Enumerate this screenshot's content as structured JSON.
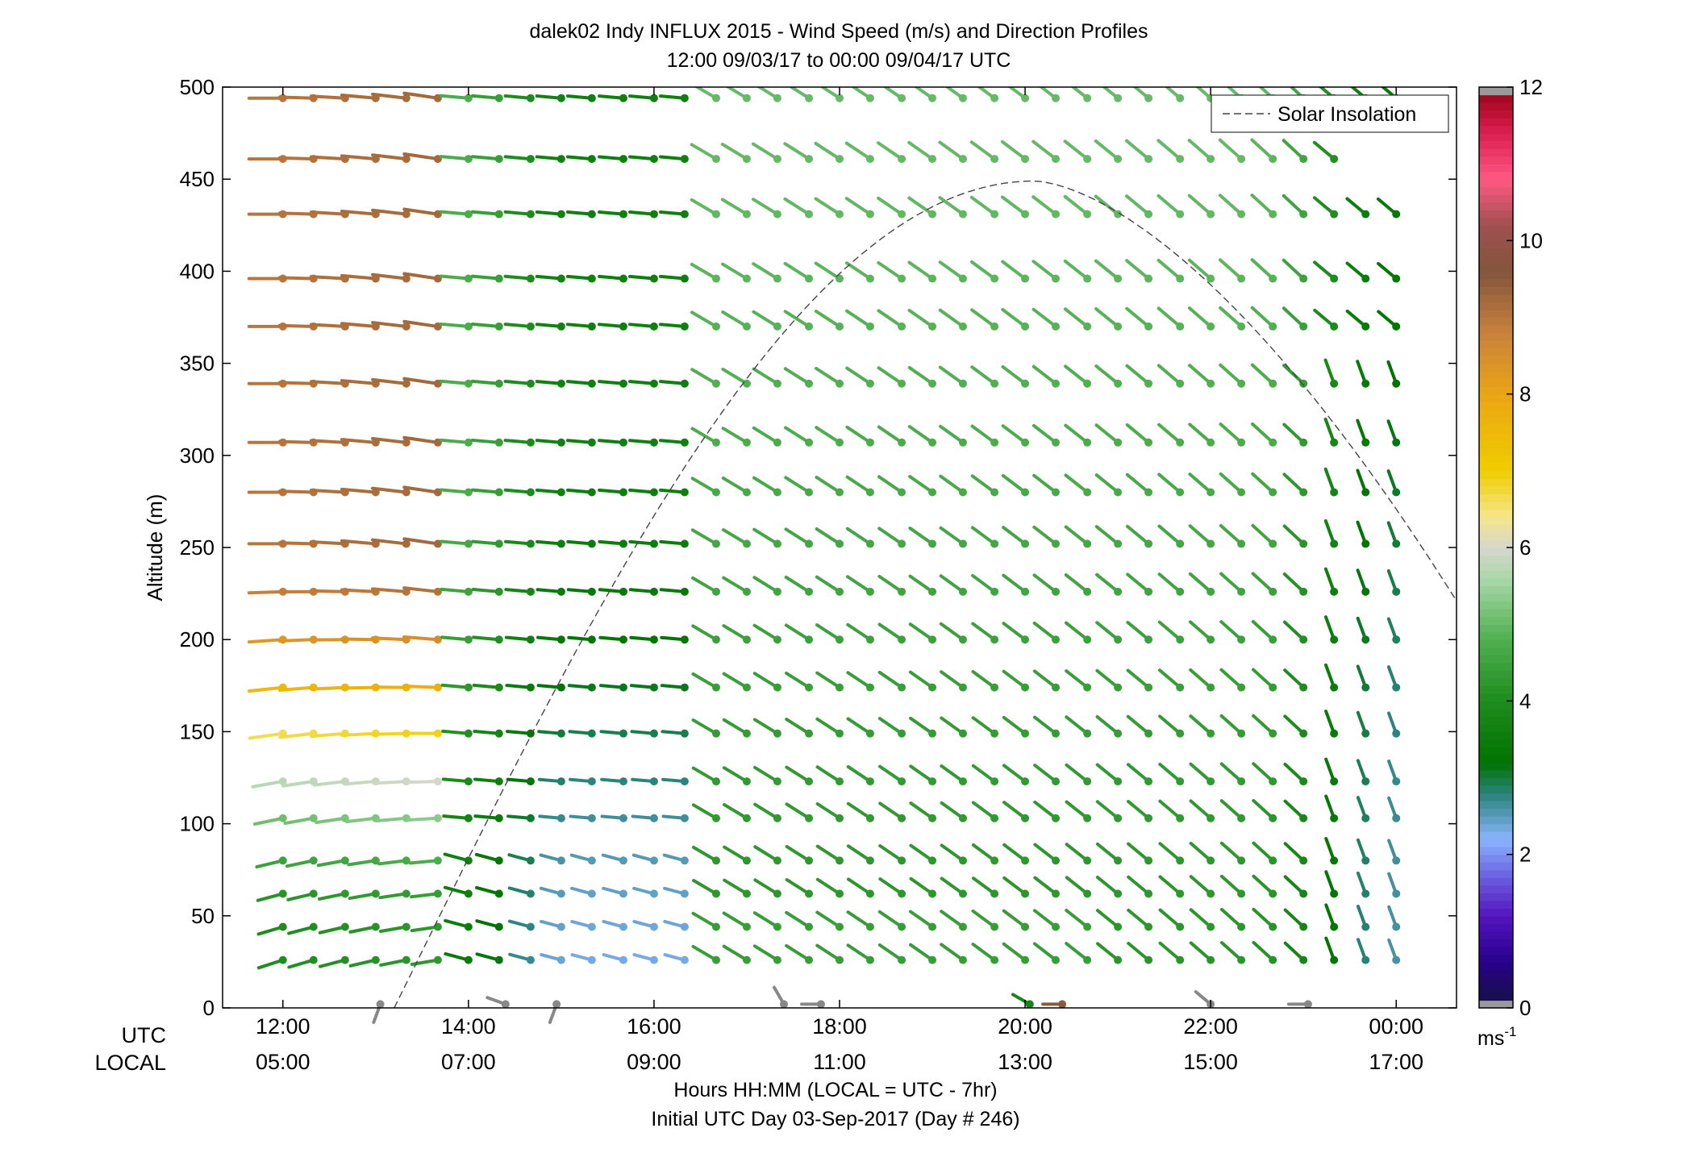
{
  "chart_data": {
    "type": "wind-barb profile",
    "title": "dalek02 Indy INFLUX 2015 - Wind Speed (m/s) and Direction Profiles",
    "subtitle": "12:00 09/03/17 to 00:00 09/04/17  UTC",
    "ylabel": "Altitude (m)",
    "ylim": [
      0,
      500
    ],
    "yticks": [
      "0",
      "50",
      "100",
      "150",
      "200",
      "250",
      "300",
      "350",
      "400",
      "450",
      "500"
    ],
    "x_axis": {
      "range_hours_utc": [
        11.35,
        24.65
      ],
      "tick_hours": [
        12,
        14,
        16,
        18,
        20,
        22,
        24
      ],
      "utc_row_label": "UTC",
      "local_row_label": "LOCAL",
      "utc_ticks": [
        "12:00",
        "14:00",
        "16:00",
        "18:00",
        "20:00",
        "22:00",
        "00:00"
      ],
      "local_ticks": [
        "05:00",
        "07:00",
        "09:00",
        "11:00",
        "13:00",
        "15:00",
        "17:00"
      ],
      "xlabel": "Hours HH:MM  (LOCAL = UTC - 7hr)",
      "xlabel2": "Initial UTC Day 03-Sep-2017 (Day # 246)"
    },
    "legend": {
      "entries": [
        "Solar Insolation"
      ],
      "position": "top-right"
    },
    "colorbar": {
      "range": [
        0,
        12
      ],
      "ticks": [
        "0",
        "2",
        "4",
        "6",
        "8",
        "10",
        "12"
      ],
      "unit": "ms",
      "unit_exponent": "-1"
    },
    "solar_insolation": {
      "start_hour": 13.2,
      "peak_hour": 20.1,
      "peak_altitude": 449,
      "end_hour": 24.65,
      "end_altitude": 221
    },
    "levels": [
      26,
      44,
      62,
      80,
      103,
      123,
      149,
      174,
      200,
      226,
      252,
      280,
      307,
      339,
      370,
      396,
      431,
      461,
      494
    ],
    "times": [
      12.0,
      12.33,
      12.67,
      13.0,
      13.33,
      13.67,
      14.0,
      14.33,
      14.67,
      15.0,
      15.33,
      15.67,
      16.0,
      16.33,
      16.67,
      17.0,
      17.33,
      17.67,
      18.0,
      18.33,
      18.67,
      19.0,
      19.33,
      19.67,
      20.0,
      20.33,
      20.67,
      21.0,
      21.33,
      21.67,
      22.0,
      22.33,
      22.67,
      23.0,
      23.33,
      23.67,
      24.0
    ],
    "surface_obs": [
      {
        "t": 13.05,
        "speed": 0.3,
        "dir": 200
      },
      {
        "t": 14.4,
        "speed": 0.3,
        "dir": 290
      },
      {
        "t": 14.95,
        "speed": 0.3,
        "dir": 200
      },
      {
        "t": 17.4,
        "speed": 0.3,
        "dir": 330
      },
      {
        "t": 17.8,
        "speed": 0.3,
        "dir": 270
      },
      {
        "t": 20.05,
        "speed": 3.8,
        "dir": 300
      },
      {
        "t": 20.4,
        "speed": 9.5,
        "dir": 270
      },
      {
        "t": 22.0,
        "speed": 0.3,
        "dir": 310
      },
      {
        "t": 23.05,
        "speed": 0.3,
        "dir": 270
      }
    ],
    "wind_field_model": {
      "speed_note": "m/s, read approximately from barb colours",
      "direction_note": "degrees, direction wind blows from (barb drawn toward it)"
    }
  }
}
